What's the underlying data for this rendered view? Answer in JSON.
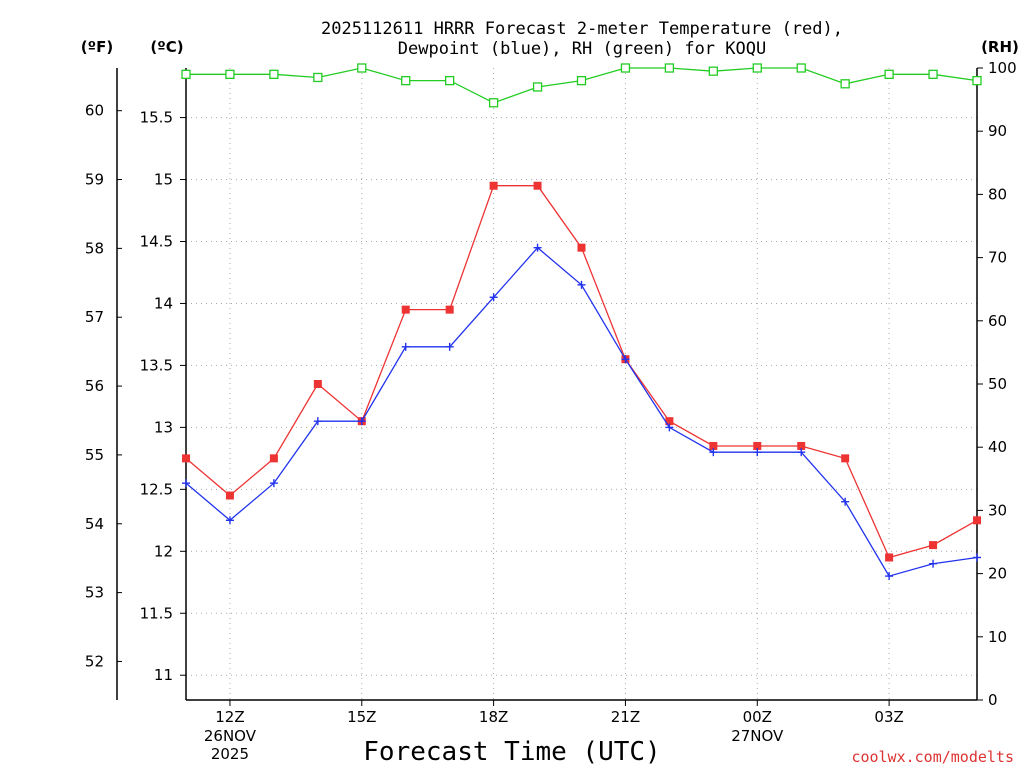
{
  "chart_data": {
    "type": "line",
    "title_line1": "2025112611 HRRR Forecast 2-meter Temperature (red),",
    "title_line2": "Dewpoint (blue), RH (green) for KOQU",
    "unit_f": "(ºF)",
    "unit_c": "(ºC)",
    "unit_rh": "(RH)",
    "xlabel": "Forecast Time (UTC)",
    "credit": "coolwx.com/modelts",
    "x_range": [
      11,
      29
    ],
    "c_range": [
      10.8,
      15.9
    ],
    "f_range": [
      51.44,
      60.62
    ],
    "rh_range": [
      0,
      100
    ],
    "x_ticks": [
      {
        "x": 12,
        "label": "12Z",
        "sub1": "26NOV",
        "sub2": "2025"
      },
      {
        "x": 15,
        "label": "15Z",
        "sub1": "",
        "sub2": ""
      },
      {
        "x": 18,
        "label": "18Z",
        "sub1": "",
        "sub2": ""
      },
      {
        "x": 21,
        "label": "21Z",
        "sub1": "",
        "sub2": ""
      },
      {
        "x": 24,
        "label": "00Z",
        "sub1": "27NOV",
        "sub2": ""
      },
      {
        "x": 27,
        "label": "03Z",
        "sub1": "",
        "sub2": ""
      }
    ],
    "c_ticks": [
      "11",
      "11.5",
      "12",
      "12.5",
      "13",
      "13.5",
      "14",
      "14.5",
      "15",
      "15.5"
    ],
    "f_ticks": [
      "52",
      "53",
      "54",
      "55",
      "56",
      "57",
      "58",
      "59",
      "60"
    ],
    "rh_ticks": [
      "0",
      "10",
      "20",
      "30",
      "40",
      "50",
      "60",
      "70",
      "80",
      "90",
      "100"
    ],
    "x": [
      11,
      12,
      13,
      14,
      15,
      16,
      17,
      18,
      19,
      20,
      21,
      22,
      23,
      24,
      25,
      26,
      27,
      28,
      29
    ],
    "series": [
      {
        "name": "Temperature",
        "color": "#ee3333",
        "marker": "square",
        "values": [
          12.75,
          12.45,
          12.75,
          13.35,
          13.05,
          13.95,
          13.95,
          14.95,
          14.95,
          14.45,
          13.55,
          13.05,
          12.85,
          12.85,
          12.85,
          12.75,
          11.95,
          12.05,
          12.25
        ]
      },
      {
        "name": "Dewpoint",
        "color": "#2233ee",
        "marker": "plus",
        "values": [
          12.55,
          12.25,
          12.55,
          13.05,
          13.05,
          13.65,
          13.65,
          14.05,
          14.45,
          14.15,
          13.55,
          13.0,
          12.8,
          12.8,
          12.8,
          12.4,
          11.8,
          11.9,
          11.95
        ]
      },
      {
        "name": "RH",
        "color": "#22cc22",
        "marker": "open-square",
        "values": [
          99,
          99,
          99,
          98.5,
          100,
          98,
          98,
          94.5,
          97,
          98,
          100,
          100,
          99.5,
          100,
          100,
          97.5,
          99,
          99,
          98
        ]
      }
    ]
  }
}
